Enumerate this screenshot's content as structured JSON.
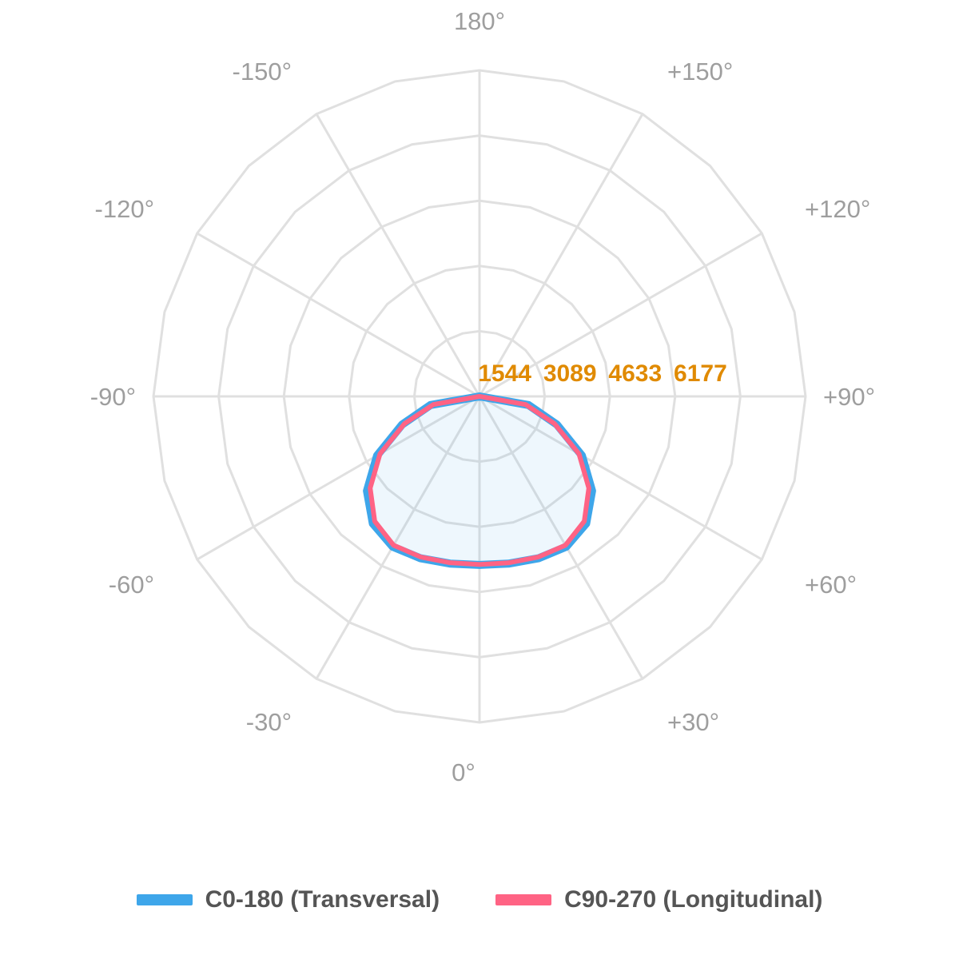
{
  "chart_data": {
    "type": "polar-line",
    "title": "",
    "angle_labels": [
      {
        "deg": 180,
        "text": "180°"
      },
      {
        "deg": 150,
        "text": "+150°"
      },
      {
        "deg": 120,
        "text": "+120°"
      },
      {
        "deg": 90,
        "text": "+90°"
      },
      {
        "deg": 60,
        "text": "+60°"
      },
      {
        "deg": 30,
        "text": "+30°"
      },
      {
        "deg": 0,
        "text": "0°"
      },
      {
        "deg": -30,
        "text": "-30°"
      },
      {
        "deg": -60,
        "text": "-60°"
      },
      {
        "deg": -90,
        "text": "-90°"
      },
      {
        "deg": -120,
        "text": "-120°"
      },
      {
        "deg": -150,
        "text": "-150°"
      }
    ],
    "radial_ticks": [
      1544,
      3089,
      4633,
      6177
    ],
    "radial_max": 7721,
    "grid": true,
    "legend_position": "bottom",
    "angles": [
      -90,
      -80,
      -70,
      -60,
      -50,
      -40,
      -30,
      -20,
      -10,
      0,
      10,
      20,
      30,
      40,
      50,
      60,
      70,
      80,
      90
    ],
    "series": [
      {
        "name": "C0-180 (Transversal)",
        "color": "#3ea6ea",
        "values": [
          0,
          1180,
          1950,
          2800,
          3480,
          3930,
          4110,
          4080,
          4020,
          3990,
          4020,
          4080,
          4110,
          3930,
          3480,
          2800,
          1950,
          1180,
          0
        ]
      },
      {
        "name": "C90-270 (Longitudinal)",
        "color": "#ff6384",
        "values": [
          0,
          1110,
          1890,
          2720,
          3380,
          3860,
          4070,
          4050,
          4000,
          3980,
          4000,
          4050,
          4070,
          3860,
          3380,
          2720,
          1890,
          1110,
          0
        ]
      }
    ]
  }
}
